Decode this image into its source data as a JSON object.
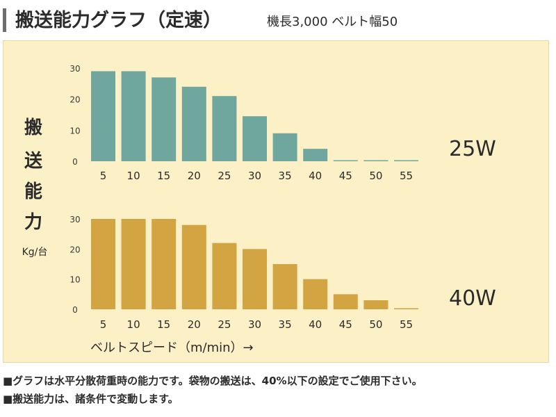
{
  "header": {
    "title": "搬送能力グラフ（定速）",
    "subtitle": "機長3,000 ベルト幅50"
  },
  "y_axis_label_chars": [
    "搬",
    "送",
    "能",
    "力"
  ],
  "y_axis_unit": "Kg/台",
  "x_axis_label": "ベルトスピード（m/min）→",
  "notes": [
    "■グラフは水平分散荷重時の能力です。袋物の搬送は、40%以下の設定でご使用下さい。",
    "■搬送能力は、諸条件で変動します。"
  ],
  "chart_data": [
    {
      "type": "bar",
      "motor": "25W",
      "color": "#6fa79e",
      "categories": [
        "5",
        "10",
        "15",
        "20",
        "25",
        "30",
        "35",
        "40",
        "45",
        "50",
        "55"
      ],
      "values": [
        29,
        29,
        27,
        24,
        21,
        14.5,
        9,
        4,
        0,
        0,
        0
      ],
      "y_ticks": [
        "0",
        "10",
        "20",
        "30"
      ],
      "ylim": [
        0,
        30
      ]
    },
    {
      "type": "bar",
      "motor": "40W",
      "color": "#d3a442",
      "categories": [
        "5",
        "10",
        "15",
        "20",
        "25",
        "30",
        "35",
        "40",
        "45",
        "50",
        "55"
      ],
      "values": [
        30,
        30,
        30,
        28,
        22,
        20,
        15,
        10,
        5,
        3,
        0
      ],
      "y_ticks": [
        "0",
        "10",
        "20",
        "30"
      ],
      "ylim": [
        0,
        30
      ]
    }
  ]
}
